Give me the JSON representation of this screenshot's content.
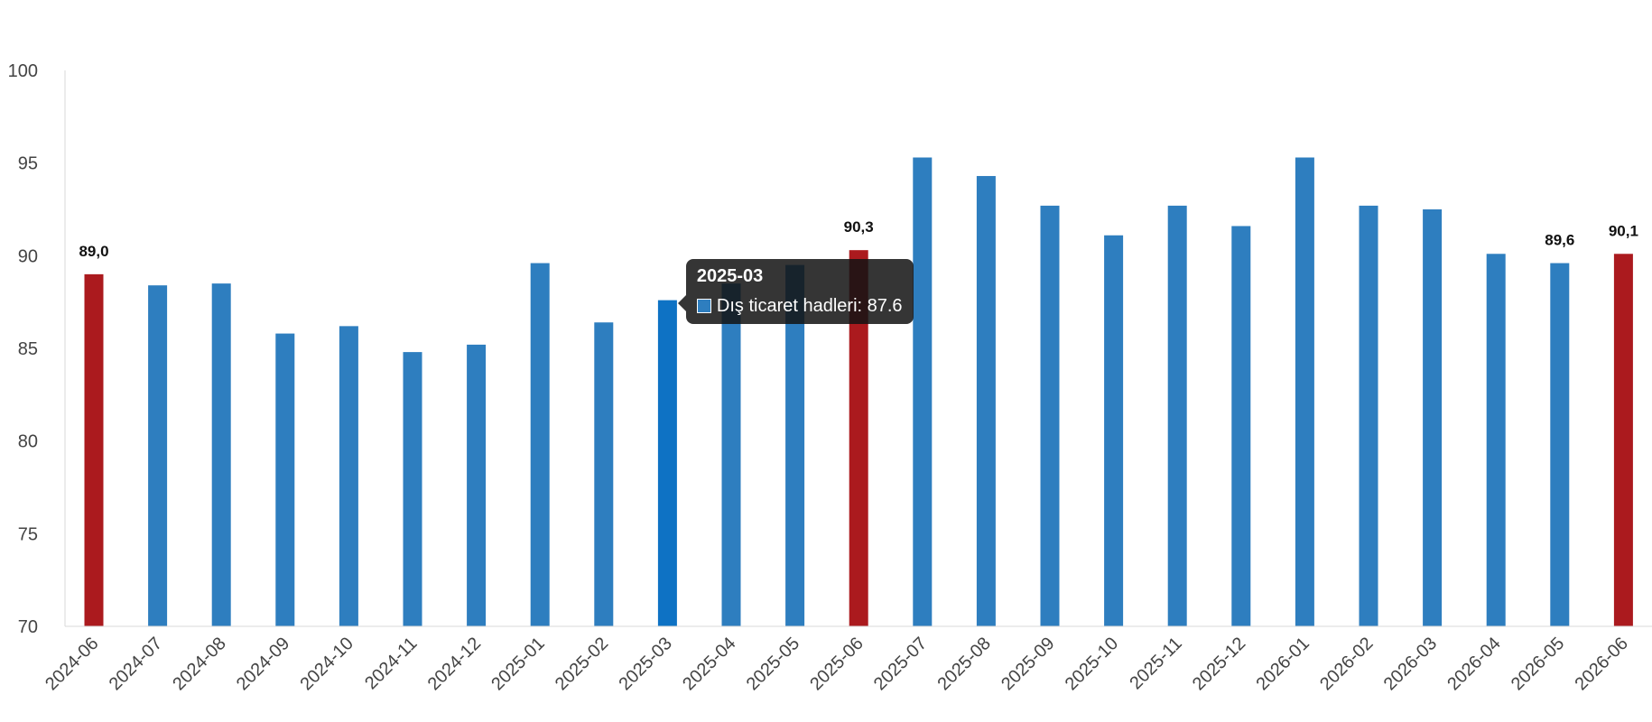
{
  "chart_data": {
    "type": "bar",
    "title": "",
    "xlabel": "",
    "ylabel": "",
    "ylim": [
      70,
      100
    ],
    "yticks": [
      70,
      75,
      80,
      85,
      90,
      95,
      100
    ],
    "grid": false,
    "categories": [
      "2024-06",
      "2024-07",
      "2024-08",
      "2024-09",
      "2024-10",
      "2024-11",
      "2024-12",
      "2025-01",
      "2025-02",
      "2025-03",
      "2025-04",
      "2025-05",
      "2025-06",
      "2025-07",
      "2025-08",
      "2025-09",
      "2025-10",
      "2025-11",
      "2025-12",
      "2026-01",
      "2026-02",
      "2026-03",
      "2026-04",
      "2026-05",
      "2026-06"
    ],
    "series": [
      {
        "name": "Dış ticaret hadleri",
        "values": [
          89.0,
          88.4,
          88.5,
          85.8,
          86.2,
          84.8,
          85.2,
          89.6,
          86.4,
          87.6,
          88.5,
          89.5,
          90.3,
          95.3,
          94.3,
          92.7,
          91.1,
          92.7,
          91.6,
          95.3,
          92.7,
          92.5,
          90.1,
          89.6,
          90.1
        ]
      }
    ],
    "colors": {
      "default": "#2e7ebf",
      "highlight": "#ab1a1e",
      "hover": "#0e72c4"
    },
    "highlighted_categories": [
      "2024-06",
      "2025-06",
      "2026-06"
    ],
    "hovered_category": "2025-03",
    "data_labels": [
      {
        "category": "2024-06",
        "text": "89,0"
      },
      {
        "category": "2025-06",
        "text": "90,3"
      },
      {
        "category": "2026-05",
        "text": "89,6"
      },
      {
        "category": "2026-06",
        "text": "90,1"
      }
    ]
  },
  "tooltip": {
    "title": "2025-03",
    "label": "Dış ticaret hadleri: 87.6"
  }
}
